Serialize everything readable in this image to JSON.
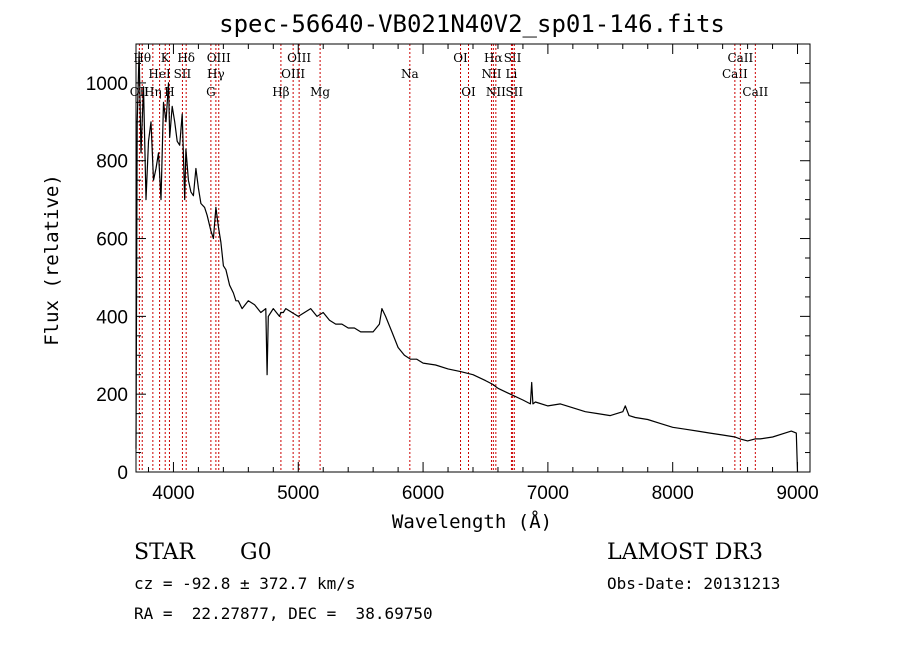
{
  "chart_data": {
    "type": "line",
    "title": "spec-56640-VB021N40V2_sp01-146.fits",
    "xlabel": "Wavelength (Å)",
    "ylabel": "Flux (relative)",
    "xlim": [
      3700,
      9100
    ],
    "ylim": [
      0,
      1100
    ],
    "xticks": [
      4000,
      5000,
      6000,
      7000,
      8000,
      9000
    ],
    "yticks": [
      0,
      200,
      400,
      600,
      800,
      1000
    ],
    "x": [
      3700,
      3710,
      3725,
      3740,
      3760,
      3780,
      3800,
      3820,
      3840,
      3860,
      3880,
      3900,
      3920,
      3940,
      3960,
      3970,
      3990,
      4010,
      4030,
      4050,
      4070,
      4090,
      4100,
      4120,
      4140,
      4160,
      4180,
      4200,
      4220,
      4250,
      4270,
      4300,
      4320,
      4340,
      4360,
      4380,
      4400,
      4420,
      4450,
      4480,
      4500,
      4520,
      4550,
      4600,
      4650,
      4700,
      4740,
      4750,
      4760,
      4780,
      4800,
      4850,
      4860,
      4880,
      4900,
      4950,
      5000,
      5050,
      5100,
      5150,
      5200,
      5250,
      5300,
      5350,
      5400,
      5450,
      5500,
      5550,
      5600,
      5650,
      5670,
      5700,
      5750,
      5800,
      5850,
      5900,
      5950,
      6000,
      6100,
      6200,
      6300,
      6400,
      6500,
      6560,
      6600,
      6700,
      6800,
      6860,
      6870,
      6880,
      6900,
      7000,
      7100,
      7200,
      7300,
      7400,
      7500,
      7600,
      7620,
      7650,
      7700,
      7800,
      7900,
      8000,
      8100,
      8200,
      8300,
      8400,
      8500,
      8540,
      8600,
      8660,
      8700,
      8800,
      8900,
      8950,
      8990,
      9000
    ],
    "y": [
      60,
      900,
      1080,
      820,
      990,
      700,
      850,
      900,
      750,
      780,
      820,
      700,
      950,
      900,
      1000,
      860,
      940,
      900,
      850,
      840,
      920,
      700,
      830,
      750,
      720,
      710,
      780,
      730,
      690,
      680,
      660,
      620,
      600,
      680,
      630,
      590,
      530,
      520,
      480,
      460,
      440,
      440,
      420,
      440,
      430,
      410,
      420,
      250,
      400,
      410,
      420,
      400,
      410,
      410,
      420,
      410,
      400,
      410,
      420,
      400,
      410,
      390,
      380,
      380,
      370,
      370,
      360,
      360,
      360,
      380,
      420,
      400,
      360,
      320,
      300,
      290,
      290,
      280,
      275,
      265,
      258,
      250,
      235,
      225,
      215,
      200,
      185,
      175,
      230,
      175,
      180,
      170,
      175,
      165,
      155,
      150,
      145,
      155,
      170,
      145,
      140,
      135,
      125,
      115,
      110,
      105,
      100,
      95,
      90,
      85,
      80,
      85,
      85,
      90,
      100,
      105,
      100,
      0
    ],
    "spectral_lines": [
      {
        "name": "OII",
        "wavelength": 3727,
        "row": 3
      },
      {
        "name": "Hθ",
        "wavelength": 3750,
        "row": 1
      },
      {
        "name": "Hη",
        "wavelength": 3835,
        "row": 3
      },
      {
        "name": "HeI",
        "wavelength": 3889,
        "row": 2
      },
      {
        "name": "K",
        "wavelength": 3934,
        "row": 1
      },
      {
        "name": "H",
        "wavelength": 3968,
        "row": 3
      },
      {
        "name": "SII",
        "wavelength": 4072,
        "row": 2
      },
      {
        "name": "Hδ",
        "wavelength": 4102,
        "row": 1
      },
      {
        "name": "G",
        "wavelength": 4300,
        "row": 3
      },
      {
        "name": "Hγ",
        "wavelength": 4340,
        "row": 2
      },
      {
        "name": "OIII",
        "wavelength": 4363,
        "row": 1
      },
      {
        "name": "Hβ",
        "wavelength": 4861,
        "row": 3
      },
      {
        "name": "OIII",
        "wavelength": 4959,
        "row": 2
      },
      {
        "name": "OIII",
        "wavelength": 5007,
        "row": 1
      },
      {
        "name": "Mg",
        "wavelength": 5175,
        "row": 3
      },
      {
        "name": "Na",
        "wavelength": 5894,
        "row": 2
      },
      {
        "name": "OI",
        "wavelength": 6300,
        "row": 1
      },
      {
        "name": "OI",
        "wavelength": 6364,
        "row": 3
      },
      {
        "name": "NII",
        "wavelength": 6548,
        "row": 2
      },
      {
        "name": "Hα",
        "wavelength": 6563,
        "row": 1
      },
      {
        "name": "NII",
        "wavelength": 6583,
        "row": 3
      },
      {
        "name": "SII",
        "wavelength": 6717,
        "row": 1
      },
      {
        "name": "Li",
        "wavelength": 6708,
        "row": 2
      },
      {
        "name": "SII",
        "wavelength": 6731,
        "row": 3
      },
      {
        "name": "CaII",
        "wavelength": 8498,
        "row": 2
      },
      {
        "name": "CaII",
        "wavelength": 8542,
        "row": 1
      },
      {
        "name": "CaII",
        "wavelength": 8662,
        "row": 3
      }
    ]
  },
  "info": {
    "object_class": "STAR",
    "subclass": "G0",
    "survey": "LAMOST DR3",
    "redshift": "cz = -92.8 ± 372.7 km/s",
    "obs_date": "Obs-Date: 20131213",
    "coordinates": "RA =  22.27877, DEC =  38.69750"
  },
  "colors": {
    "line_marker": "#cc0000",
    "spectrum": "#000000",
    "axes": "#000000"
  }
}
